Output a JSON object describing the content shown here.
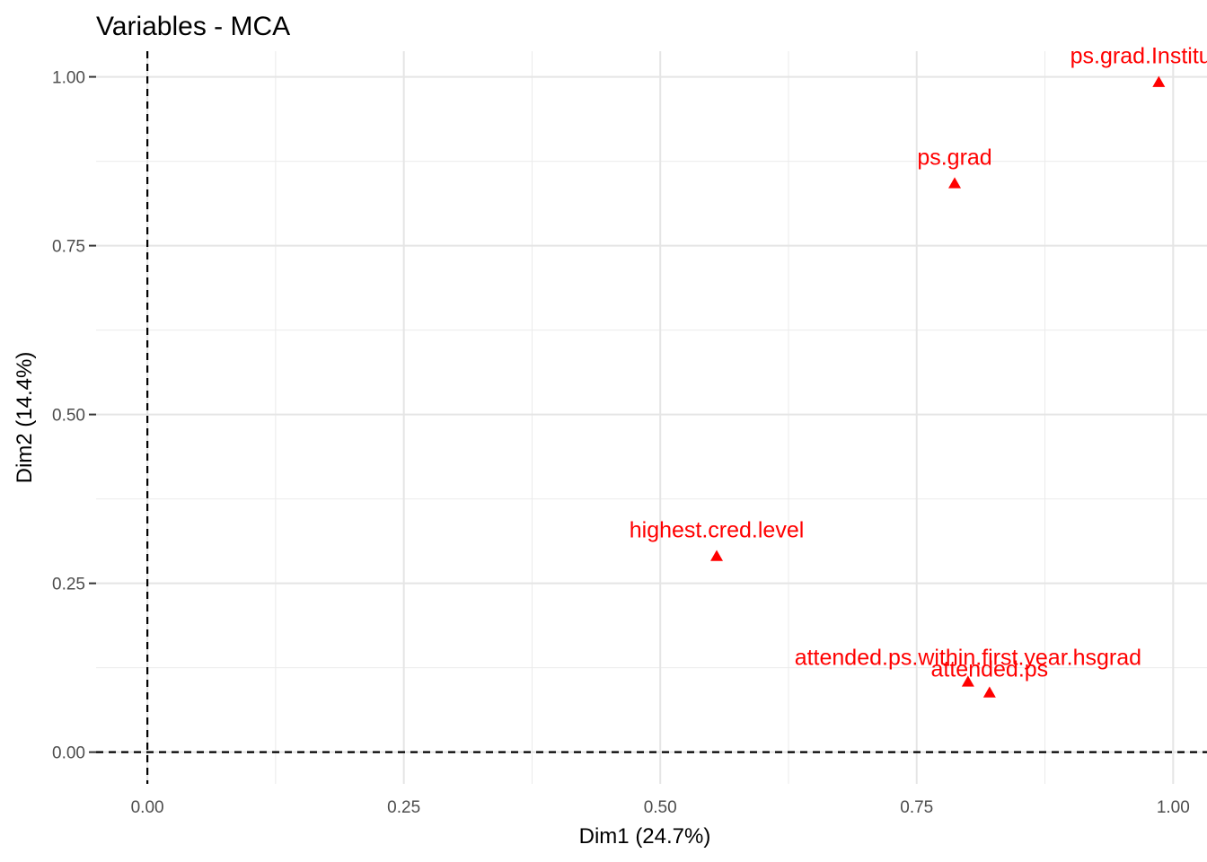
{
  "chart_data": {
    "type": "scatter",
    "title": "Variables - MCA",
    "xlabel": "Dim1 (24.7%)",
    "ylabel": "Dim2 (14.4%)",
    "xlim": [
      -0.05,
      1.033
    ],
    "ylim": [
      -0.047,
      1.038
    ],
    "x_ticks": [
      0.0,
      0.25,
      0.5,
      0.75,
      1.0
    ],
    "x_tick_labels": [
      "0.00",
      "0.25",
      "0.50",
      "0.75",
      "1.00"
    ],
    "y_ticks": [
      0.0,
      0.25,
      0.5,
      0.75,
      1.0
    ],
    "y_tick_labels": [
      "0.00",
      "0.25",
      "0.50",
      "0.75",
      "1.00"
    ],
    "grid": true,
    "reference_lines": {
      "x": 0,
      "y": 0,
      "style": "dashed"
    },
    "marker": "triangle",
    "point_color": "#ff0000",
    "points": [
      {
        "label": "ps.grad.Institution",
        "x": 0.986,
        "y": 0.992,
        "label_dx": 0.0,
        "label_dy": 0.028
      },
      {
        "label": "ps.grad",
        "x": 0.787,
        "y": 0.842,
        "label_dx": 0.0,
        "label_dy": 0.028
      },
      {
        "label": "highest.cred.level",
        "x": 0.555,
        "y": 0.29,
        "label_dx": 0.0,
        "label_dy": 0.028
      },
      {
        "label": "attended.ps.within.first.year.hsgrad",
        "x": 0.8,
        "y": 0.104,
        "label_dx": 0.0,
        "label_dy": 0.025
      },
      {
        "label": "attended.ps",
        "x": 0.821,
        "y": 0.088,
        "label_dx": 0.0,
        "label_dy": 0.024
      }
    ]
  }
}
